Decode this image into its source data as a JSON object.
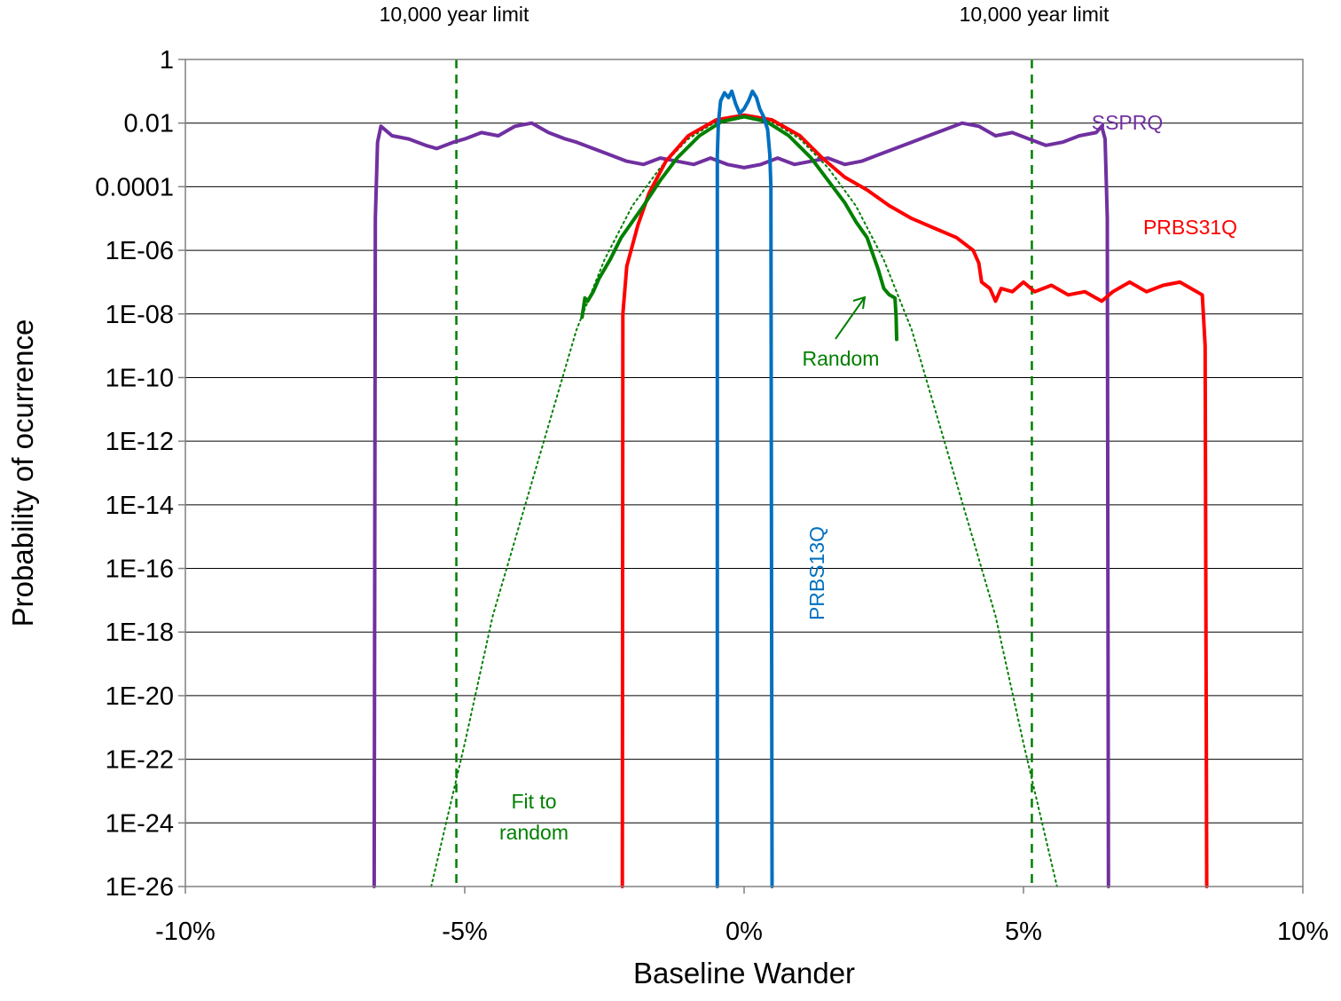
{
  "chart_data": {
    "type": "line",
    "title": "",
    "xlabel": "Baseline Wander",
    "ylabel": "Probability of ocurrence",
    "xlim": [
      -0.1,
      0.1
    ],
    "y_scale": "log10",
    "ylim": [
      1e-26,
      1
    ],
    "x_ticks": [
      "-10%",
      "-5%",
      "0%",
      "5%",
      "10%"
    ],
    "x_tick_values": [
      -0.1,
      -0.05,
      0.0,
      0.05,
      0.1
    ],
    "y_ticks": [
      "1",
      "0.01",
      "0.0001",
      "1E-06",
      "1E-08",
      "1E-10",
      "1E-12",
      "1E-14",
      "1E-16",
      "1E-18",
      "1E-20",
      "1E-22",
      "1E-24",
      "1E-26"
    ],
    "y_tick_exponents": [
      0,
      -2,
      -4,
      -6,
      -8,
      -10,
      -12,
      -14,
      -16,
      -18,
      -20,
      -22,
      -24,
      -26
    ],
    "grid": "horizontal",
    "legend": "none",
    "series": [
      {
        "name": "SSPRQ",
        "color": "#7030A0",
        "style": "solid",
        "points": [
          [
            -0.0662,
            -26
          ],
          [
            -0.066,
            -5
          ],
          [
            -0.0656,
            -2.6
          ],
          [
            -0.065,
            -2.1
          ],
          [
            -0.063,
            -2.4
          ],
          [
            -0.06,
            -2.5
          ],
          [
            -0.057,
            -2.7
          ],
          [
            -0.055,
            -2.8
          ],
          [
            -0.052,
            -2.6
          ],
          [
            -0.05,
            -2.5
          ],
          [
            -0.047,
            -2.3
          ],
          [
            -0.044,
            -2.4
          ],
          [
            -0.041,
            -2.1
          ],
          [
            -0.038,
            -2.0
          ],
          [
            -0.035,
            -2.3
          ],
          [
            -0.032,
            -2.5
          ],
          [
            -0.03,
            -2.6
          ],
          [
            -0.027,
            -2.8
          ],
          [
            -0.024,
            -3.0
          ],
          [
            -0.021,
            -3.2
          ],
          [
            -0.018,
            -3.3
          ],
          [
            -0.015,
            -3.1
          ],
          [
            -0.012,
            -3.2
          ],
          [
            -0.009,
            -3.3
          ],
          [
            -0.006,
            -3.1
          ],
          [
            -0.003,
            -3.3
          ],
          [
            0.0,
            -3.4
          ],
          [
            0.003,
            -3.3
          ],
          [
            0.006,
            -3.1
          ],
          [
            0.009,
            -3.3
          ],
          [
            0.012,
            -3.2
          ],
          [
            0.015,
            -3.1
          ],
          [
            0.018,
            -3.3
          ],
          [
            0.021,
            -3.2
          ],
          [
            0.024,
            -3.0
          ],
          [
            0.027,
            -2.8
          ],
          [
            0.03,
            -2.6
          ],
          [
            0.033,
            -2.4
          ],
          [
            0.036,
            -2.2
          ],
          [
            0.039,
            -2.0
          ],
          [
            0.042,
            -2.1
          ],
          [
            0.045,
            -2.4
          ],
          [
            0.048,
            -2.3
          ],
          [
            0.051,
            -2.5
          ],
          [
            0.054,
            -2.7
          ],
          [
            0.057,
            -2.6
          ],
          [
            0.06,
            -2.4
          ],
          [
            0.063,
            -2.3
          ],
          [
            0.064,
            -2.1
          ],
          [
            0.0646,
            -2.5
          ],
          [
            0.065,
            -5
          ],
          [
            0.0652,
            -26
          ]
        ]
      },
      {
        "name": "PRBS31Q",
        "color": "#FF0000",
        "style": "solid",
        "points": [
          [
            -0.0218,
            -26
          ],
          [
            -0.0217,
            -8
          ],
          [
            -0.021,
            -6.5
          ],
          [
            -0.019,
            -5.2
          ],
          [
            -0.017,
            -4.2
          ],
          [
            -0.014,
            -3.2
          ],
          [
            -0.01,
            -2.4
          ],
          [
            -0.005,
            -1.9
          ],
          [
            0.0,
            -1.75
          ],
          [
            0.005,
            -1.9
          ],
          [
            0.01,
            -2.4
          ],
          [
            0.014,
            -3.1
          ],
          [
            0.018,
            -3.7
          ],
          [
            0.022,
            -4.1
          ],
          [
            0.026,
            -4.6
          ],
          [
            0.03,
            -5.0
          ],
          [
            0.034,
            -5.3
          ],
          [
            0.038,
            -5.6
          ],
          [
            0.041,
            -6.0
          ],
          [
            0.042,
            -6.4
          ],
          [
            0.0425,
            -7.0
          ],
          [
            0.044,
            -7.2
          ],
          [
            0.045,
            -7.6
          ],
          [
            0.046,
            -7.2
          ],
          [
            0.048,
            -7.3
          ],
          [
            0.05,
            -7.0
          ],
          [
            0.052,
            -7.3
          ],
          [
            0.055,
            -7.1
          ],
          [
            0.058,
            -7.4
          ],
          [
            0.061,
            -7.3
          ],
          [
            0.064,
            -7.6
          ],
          [
            0.066,
            -7.3
          ],
          [
            0.069,
            -7.0
          ],
          [
            0.072,
            -7.3
          ],
          [
            0.075,
            -7.1
          ],
          [
            0.078,
            -7.0
          ],
          [
            0.08,
            -7.2
          ],
          [
            0.082,
            -7.4
          ],
          [
            0.0825,
            -9
          ],
          [
            0.0828,
            -26
          ]
        ]
      },
      {
        "name": "PRBS13Q",
        "color": "#0070C0",
        "style": "solid",
        "points": [
          [
            -0.0048,
            -26
          ],
          [
            -0.0048,
            -3
          ],
          [
            -0.0046,
            -2
          ],
          [
            -0.0042,
            -1.3
          ],
          [
            -0.0035,
            -1.05
          ],
          [
            -0.0028,
            -1.2
          ],
          [
            -0.0022,
            -1.0
          ],
          [
            -0.0015,
            -1.4
          ],
          [
            -0.0008,
            -1.7
          ],
          [
            0.0,
            -1.55
          ],
          [
            0.0008,
            -1.3
          ],
          [
            0.0015,
            -1.0
          ],
          [
            0.0022,
            -1.2
          ],
          [
            0.0028,
            -1.55
          ],
          [
            0.0035,
            -1.8
          ],
          [
            0.0042,
            -2.2
          ],
          [
            0.0046,
            -3
          ],
          [
            0.0048,
            -4
          ],
          [
            0.005,
            -26
          ]
        ]
      },
      {
        "name": "Random",
        "color": "#008000",
        "style": "solid",
        "points": [
          [
            -0.029,
            -8.1
          ],
          [
            -0.0285,
            -7.5
          ],
          [
            -0.028,
            -7.6
          ],
          [
            -0.027,
            -7.3
          ],
          [
            -0.026,
            -6.9
          ],
          [
            -0.024,
            -6.3
          ],
          [
            -0.022,
            -5.6
          ],
          [
            -0.02,
            -5.1
          ],
          [
            -0.018,
            -4.6
          ],
          [
            -0.015,
            -3.8
          ],
          [
            -0.012,
            -3.1
          ],
          [
            -0.008,
            -2.4
          ],
          [
            -0.004,
            -1.95
          ],
          [
            0.0,
            -1.8
          ],
          [
            0.004,
            -1.95
          ],
          [
            0.008,
            -2.4
          ],
          [
            0.012,
            -3.1
          ],
          [
            0.015,
            -3.8
          ],
          [
            0.018,
            -4.5
          ],
          [
            0.02,
            -5.1
          ],
          [
            0.022,
            -5.6
          ],
          [
            0.023,
            -6.1
          ],
          [
            0.024,
            -6.6
          ],
          [
            0.025,
            -7.2
          ],
          [
            0.026,
            -7.4
          ],
          [
            0.027,
            -7.5
          ],
          [
            0.0272,
            -8.1
          ],
          [
            0.0273,
            -8.8
          ]
        ]
      },
      {
        "name": "Fit to random",
        "color": "#008000",
        "style": "dotted",
        "points": [
          [
            -0.056,
            -26
          ],
          [
            -0.05,
            -21.5
          ],
          [
            -0.045,
            -17.5
          ],
          [
            -0.04,
            -14.5
          ],
          [
            -0.035,
            -11.5
          ],
          [
            -0.03,
            -8.5
          ],
          [
            -0.025,
            -6.3
          ],
          [
            -0.02,
            -4.6
          ],
          [
            -0.015,
            -3.4
          ],
          [
            -0.01,
            -2.5
          ],
          [
            -0.005,
            -1.95
          ],
          [
            0.0,
            -1.8
          ],
          [
            0.005,
            -1.95
          ],
          [
            0.01,
            -2.5
          ],
          [
            0.015,
            -3.4
          ],
          [
            0.02,
            -4.6
          ],
          [
            0.025,
            -6.3
          ],
          [
            0.03,
            -8.5
          ],
          [
            0.035,
            -11.5
          ],
          [
            0.04,
            -14.5
          ],
          [
            0.045,
            -17.5
          ],
          [
            0.05,
            -21.5
          ],
          [
            0.056,
            -26
          ]
        ]
      }
    ],
    "reference_lines": [
      {
        "label": "10,000 year limit",
        "x": -0.0515,
        "color": "#008000",
        "style": "dashed"
      },
      {
        "label": "10,000 year limit",
        "x": 0.0515,
        "color": "#008000",
        "style": "dashed"
      }
    ],
    "annotations": [
      {
        "text": "SSPRQ",
        "color": "#7030A0"
      },
      {
        "text": "PRBS31Q",
        "color": "#FF0000"
      },
      {
        "text": "PRBS13Q",
        "color": "#0070C0"
      },
      {
        "text": "Random",
        "color": "#008000"
      },
      {
        "text": "Fit to random",
        "lines": [
          "Fit to",
          "random"
        ],
        "color": "#008000"
      }
    ]
  }
}
